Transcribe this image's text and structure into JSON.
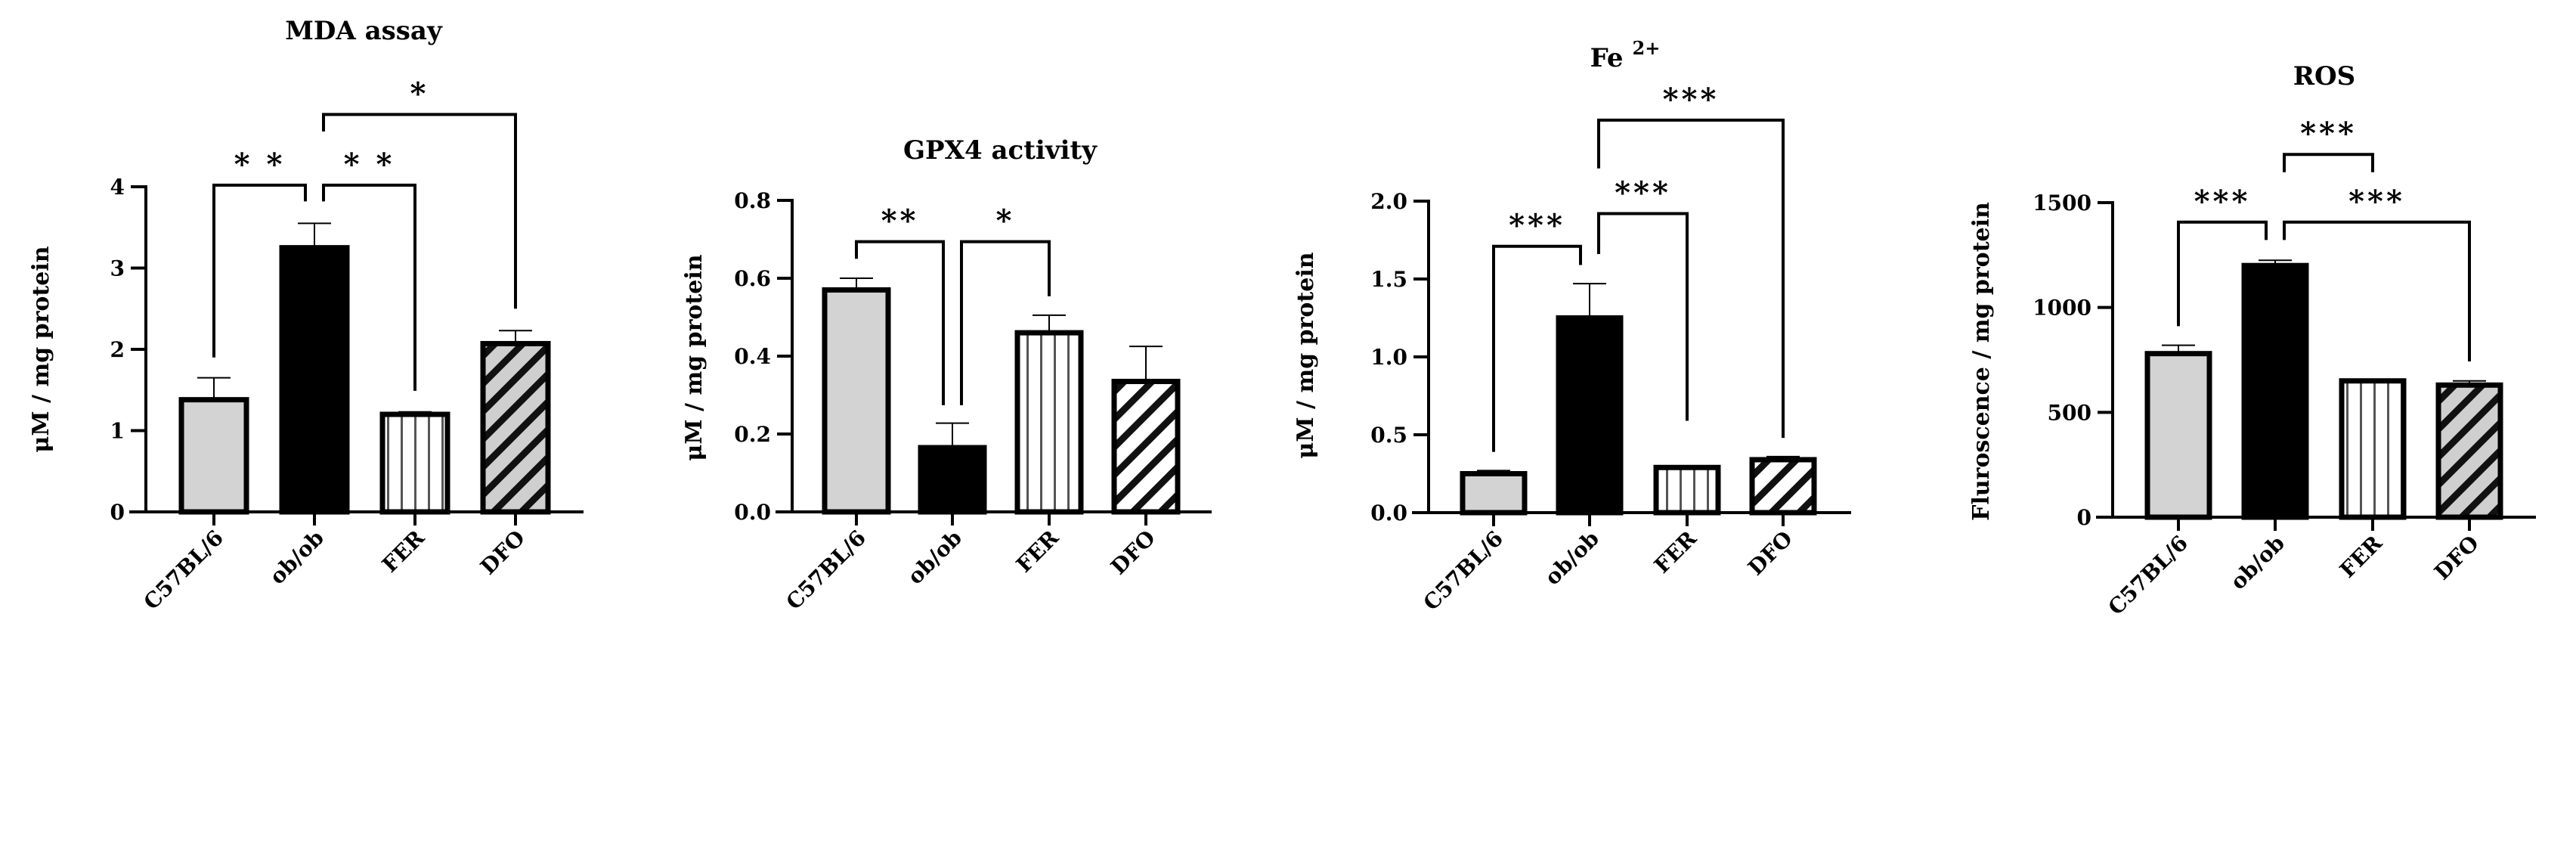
{
  "chart_data": [
    {
      "type": "bar",
      "title": "MDA assay",
      "ylabel": "μM / mg protein",
      "ylim": [
        0,
        4
      ],
      "yticks": [
        0,
        1,
        2,
        3,
        4
      ],
      "ytick_labels": [
        "0",
        "1",
        "2",
        "3",
        "4"
      ],
      "categories": [
        "C57BL/6",
        "ob/ob",
        "FER",
        "DFO"
      ],
      "values": [
        1.38,
        3.25,
        1.2,
        2.07
      ],
      "error_upper": [
        1.65,
        3.55,
        1.23,
        2.23
      ],
      "patterns": [
        "solid-gray",
        "solid-black",
        "vertical-stripes",
        "diagonal-gray"
      ],
      "significance": [
        {
          "from": 0,
          "to": 1,
          "level": 4.02,
          "left_end": 1.9,
          "right_end": 3.82,
          "label": "* *"
        },
        {
          "from": 1,
          "to": 2,
          "level": 4.02,
          "left_end": 3.82,
          "right_end": 1.49,
          "label": "* *"
        },
        {
          "from": 1,
          "to": 3,
          "level": 4.89,
          "left_end": 4.68,
          "right_end": 2.5,
          "label": "*"
        }
      ]
    },
    {
      "type": "bar",
      "title": "GPX4 activity",
      "ylabel": "μM / mg protein",
      "ylim": [
        0,
        0.8
      ],
      "yticks": [
        0,
        0.2,
        0.4,
        0.6,
        0.8
      ],
      "ytick_labels": [
        "0.0",
        "0.2",
        "0.4",
        "0.6",
        "0.8"
      ],
      "categories": [
        "C57BL/6",
        "ob/ob",
        "FER",
        "DFO"
      ],
      "values": [
        0.57,
        0.165,
        0.46,
        0.335
      ],
      "error_upper": [
        0.6,
        0.228,
        0.505,
        0.425
      ],
      "patterns": [
        "solid-gray",
        "solid-black",
        "vertical-stripes",
        "diagonal-white"
      ],
      "significance": [
        {
          "from": 0,
          "to": 1,
          "level": 0.694,
          "left_end": 0.65,
          "right_end": 0.274,
          "label": "**"
        },
        {
          "from": 1,
          "to": 2,
          "level": 0.694,
          "left_end": 0.274,
          "right_end": 0.554,
          "label": "*"
        }
      ]
    },
    {
      "type": "bar",
      "title": "Fe",
      "title_superscript": "2+",
      "ylabel": "μM / mg protein",
      "ylim": [
        0,
        2
      ],
      "yticks": [
        0,
        0.5,
        1,
        1.5,
        2
      ],
      "ytick_labels": [
        "0.0",
        "0.5",
        "1.0",
        "1.5",
        "2.0"
      ],
      "categories": [
        "C57BL/6",
        "ob/ob",
        "FER",
        "DFO"
      ],
      "values": [
        0.25,
        1.25,
        0.29,
        0.34
      ],
      "error_upper": [
        0.27,
        1.47,
        0.3,
        0.36
      ],
      "patterns": [
        "solid-gray",
        "solid-black",
        "vertical-stripes",
        "diagonal-white"
      ],
      "significance": [
        {
          "from": 0,
          "to": 1,
          "level": 1.71,
          "left_end": 0.39,
          "right_end": 1.59,
          "label": "***"
        },
        {
          "from": 1,
          "to": 2,
          "level": 1.92,
          "left_end": 1.66,
          "right_end": 0.59,
          "label": "***"
        },
        {
          "from": 1,
          "to": 3,
          "level": 2.52,
          "left_end": 2.21,
          "right_end": 0.48,
          "label": "***"
        }
      ]
    },
    {
      "type": "bar",
      "title": "ROS",
      "ylabel": "Fluroscence / mg protein",
      "ylim": [
        0,
        1500
      ],
      "yticks": [
        0,
        500,
        1000,
        1500
      ],
      "ytick_labels": [
        "0",
        "500",
        "1000",
        "1500"
      ],
      "categories": [
        "C57BL/6",
        "ob/ob",
        "FER",
        "DFO"
      ],
      "values": [
        780,
        1200,
        650,
        630
      ],
      "error_upper": [
        820,
        1225,
        655,
        650
      ],
      "patterns": [
        "solid-gray",
        "solid-black",
        "vertical-stripes",
        "diagonal-gray"
      ],
      "significance": [
        {
          "from": 0,
          "to": 1,
          "level": 1407,
          "left_end": 911,
          "right_end": 1322,
          "label": "***"
        },
        {
          "from": 1,
          "to": 3,
          "level": 1407,
          "left_end": 1322,
          "right_end": 743,
          "label": "***"
        },
        {
          "from": 1,
          "to": 2,
          "level": 1730,
          "left_end": 1645,
          "right_end": 1645,
          "label": "***"
        }
      ]
    }
  ],
  "colors": {
    "gray_fill": "#d3d3d3",
    "black": "#000000",
    "white": "#ffffff"
  }
}
